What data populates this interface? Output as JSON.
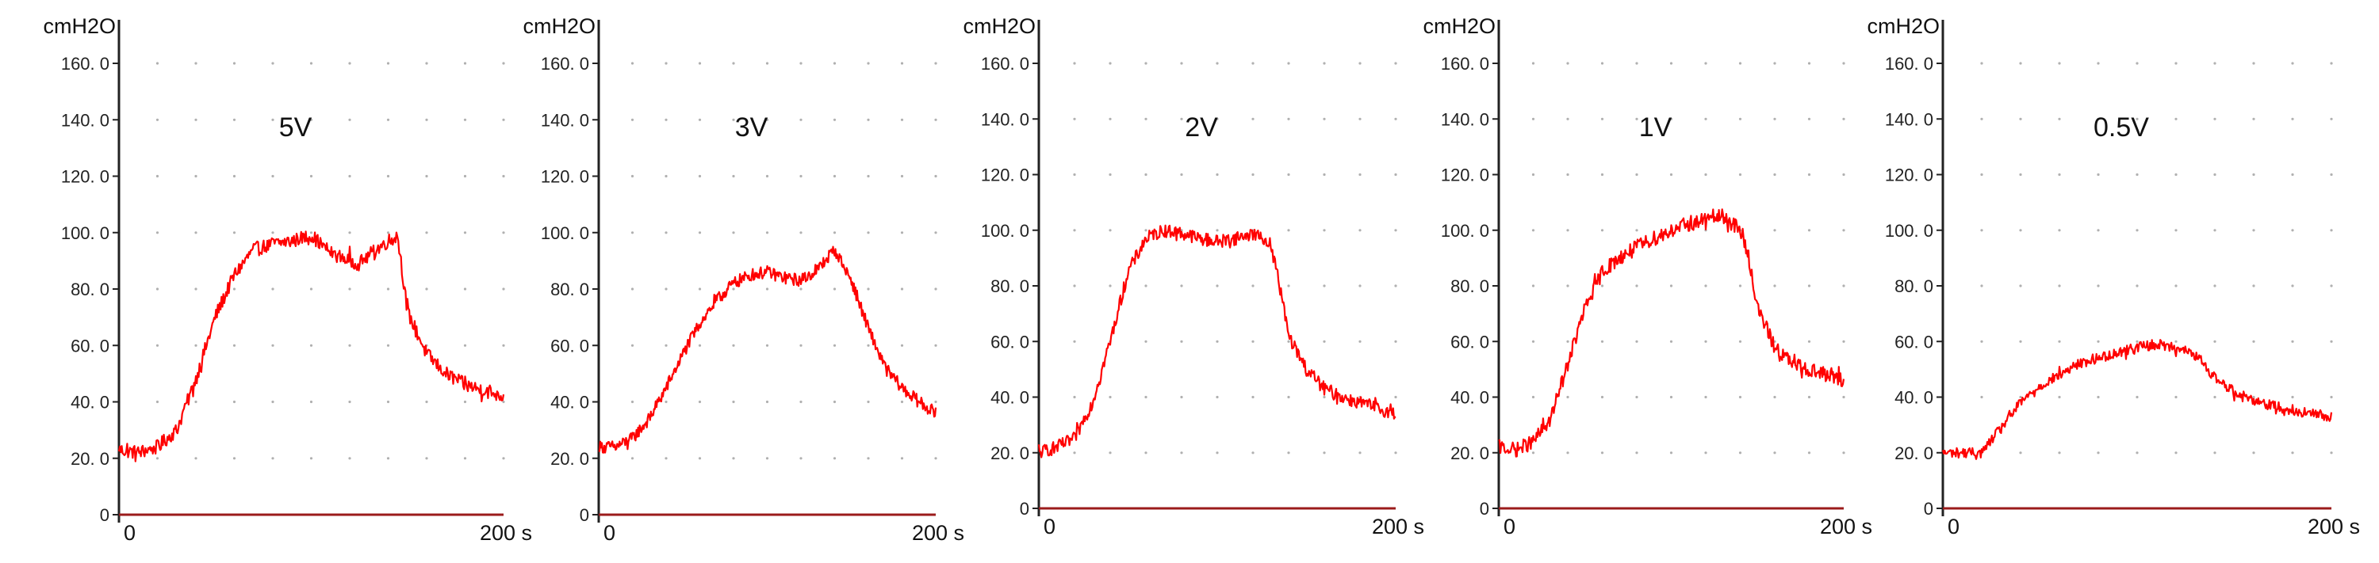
{
  "colors": {
    "trace": "#ff0000",
    "baseline": "#9b1b1b",
    "axis": "#222222",
    "grid": "#b0b0b0"
  },
  "chart_data": [
    {
      "type": "line",
      "title": "5V",
      "ylabel": "cmH2O",
      "ylim": [
        0,
        160
      ],
      "yticks": [
        "0",
        "20. 0",
        "40. 0",
        "60. 0",
        "80. 0",
        "100. 0",
        "120. 0",
        "140. 0",
        "160. 0"
      ],
      "xlim": [
        0,
        200
      ],
      "xticks": [
        "0",
        "200 s"
      ],
      "grid": "dotted",
      "series": [
        {
          "x": [
            0,
            10,
            20,
            30,
            40,
            50,
            60,
            70,
            80,
            90,
            100,
            110,
            120,
            125,
            130,
            140,
            145,
            150,
            160,
            170,
            180,
            190,
            200
          ],
          "y": [
            23,
            22,
            24,
            30,
            48,
            70,
            85,
            94,
            96,
            97,
            99,
            93,
            90,
            89,
            92,
            97,
            99,
            72,
            57,
            50,
            46,
            44,
            42
          ],
          "noise": 2.5
        }
      ]
    },
    {
      "type": "line",
      "title": "3V",
      "ylabel": "cmH2O",
      "ylim": [
        0,
        160
      ],
      "yticks": [
        "0",
        "20. 0",
        "40. 0",
        "60. 0",
        "80. 0",
        "100. 0",
        "120. 0",
        "140. 0",
        "160. 0"
      ],
      "xlim": [
        0,
        200
      ],
      "xticks": [
        "0",
        "200 s"
      ],
      "grid": "dotted",
      "series": [
        {
          "x": [
            0,
            10,
            20,
            30,
            40,
            50,
            60,
            70,
            80,
            90,
            100,
            110,
            120,
            130,
            140,
            150,
            160,
            170,
            180,
            190,
            200
          ],
          "y": [
            24,
            24,
            27,
            34,
            45,
            57,
            68,
            76,
            82,
            85,
            86,
            84,
            83,
            87,
            94,
            83,
            66,
            52,
            45,
            40,
            36
          ],
          "noise": 2.2
        }
      ]
    },
    {
      "type": "line",
      "title": "2V",
      "ylabel": "cmH2O",
      "ylim": [
        0,
        160
      ],
      "yticks": [
        "0",
        "20. 0",
        "40. 0",
        "60. 0",
        "80. 0",
        "100. 0",
        "120. 0",
        "140. 0",
        "160. 0"
      ],
      "xlim": [
        0,
        200
      ],
      "xticks": [
        "0",
        "200 s"
      ],
      "grid": "dotted",
      "series": [
        {
          "x": [
            0,
            10,
            20,
            30,
            40,
            50,
            60,
            70,
            80,
            90,
            100,
            110,
            120,
            130,
            135,
            140,
            150,
            160,
            170,
            180,
            190,
            200
          ],
          "y": [
            20,
            22,
            25,
            38,
            60,
            85,
            97,
            100,
            99,
            97,
            96,
            97,
            99,
            95,
            80,
            62,
            50,
            43,
            40,
            38,
            36,
            34
          ],
          "noise": 2.4
        }
      ]
    },
    {
      "type": "line",
      "title": "1V",
      "ylabel": "cmH2O",
      "ylim": [
        0,
        160
      ],
      "yticks": [
        "0",
        "20. 0",
        "40. 0",
        "60. 0",
        "80. 0",
        "100. 0",
        "120. 0",
        "140. 0",
        "160. 0"
      ],
      "xlim": [
        0,
        200
      ],
      "xticks": [
        "0",
        "200 s"
      ],
      "grid": "dotted",
      "series": [
        {
          "x": [
            0,
            10,
            20,
            30,
            40,
            50,
            60,
            70,
            80,
            90,
            100,
            110,
            120,
            130,
            140,
            145,
            150,
            160,
            170,
            180,
            190,
            200
          ],
          "y": [
            22,
            21,
            24,
            32,
            52,
            72,
            85,
            90,
            94,
            97,
            100,
            102,
            104,
            105,
            100,
            90,
            72,
            58,
            52,
            50,
            48,
            46
          ],
          "noise": 2.6
        }
      ]
    },
    {
      "type": "line",
      "title": "0.5V",
      "ylabel": "cmH2O",
      "ylim": [
        0,
        160
      ],
      "yticks": [
        "0",
        "20. 0",
        "40. 0",
        "60. 0",
        "80. 0",
        "100. 0",
        "120. 0",
        "140. 0",
        "160. 0"
      ],
      "xlim": [
        0,
        200
      ],
      "xticks": [
        "0",
        "200 s"
      ],
      "grid": "dotted",
      "series": [
        {
          "x": [
            0,
            10,
            20,
            30,
            40,
            50,
            60,
            70,
            80,
            90,
            100,
            110,
            120,
            130,
            140,
            150,
            160,
            170,
            180,
            190,
            200
          ],
          "y": [
            20,
            20,
            20,
            29,
            38,
            44,
            48,
            52,
            54,
            56,
            58,
            59,
            58,
            55,
            47,
            42,
            39,
            37,
            35,
            34,
            33
          ],
          "noise": 1.8
        }
      ]
    }
  ]
}
